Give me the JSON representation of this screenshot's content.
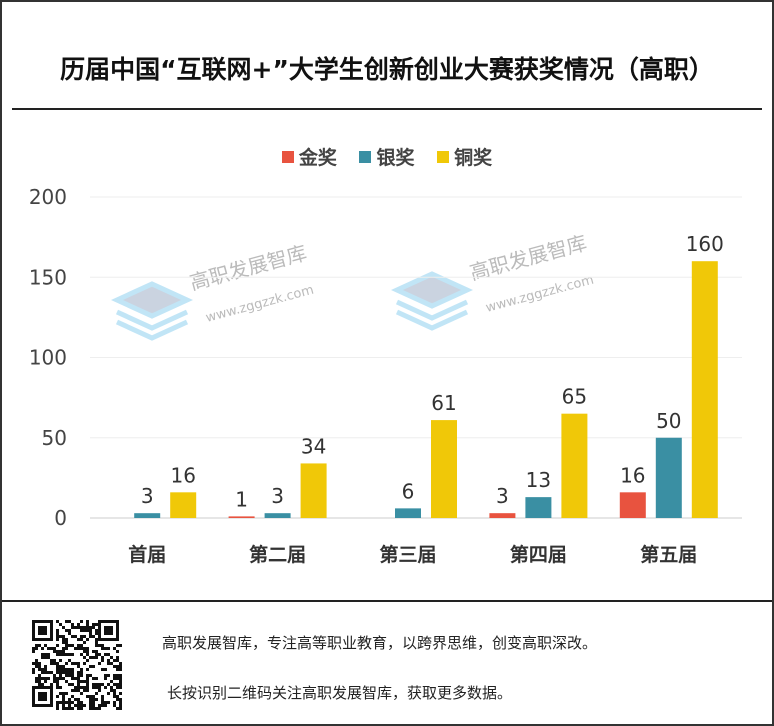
{
  "chart_data": {
    "type": "bar",
    "title": "历届中国“互联网+”大学生创新创业大赛获奖情况（高职）",
    "categories": [
      "首届",
      "第二届",
      "第三届",
      "第四届",
      "第五届"
    ],
    "series": [
      {
        "name": "金奖",
        "color": "#e8533f",
        "values": [
          null,
          1,
          null,
          3,
          16
        ]
      },
      {
        "name": "银奖",
        "color": "#3a8fa3",
        "values": [
          3,
          3,
          6,
          13,
          50
        ]
      },
      {
        "name": "铜奖",
        "color": "#f0c808",
        "values": [
          16,
          34,
          61,
          65,
          160
        ]
      }
    ],
    "ylim": [
      0,
      200
    ],
    "yticks": [
      0,
      50,
      100,
      150,
      200
    ],
    "grid": true,
    "legend": "top"
  },
  "watermark": {
    "name": "高职发展智库",
    "url": "www.zggzzk.com"
  },
  "footer": {
    "line1": "高职发展智库，专注高等职业教育，以跨界思维，创变高职深改。",
    "line2": "长按识别二维码关注高职发展智库，获取更多数据。"
  }
}
